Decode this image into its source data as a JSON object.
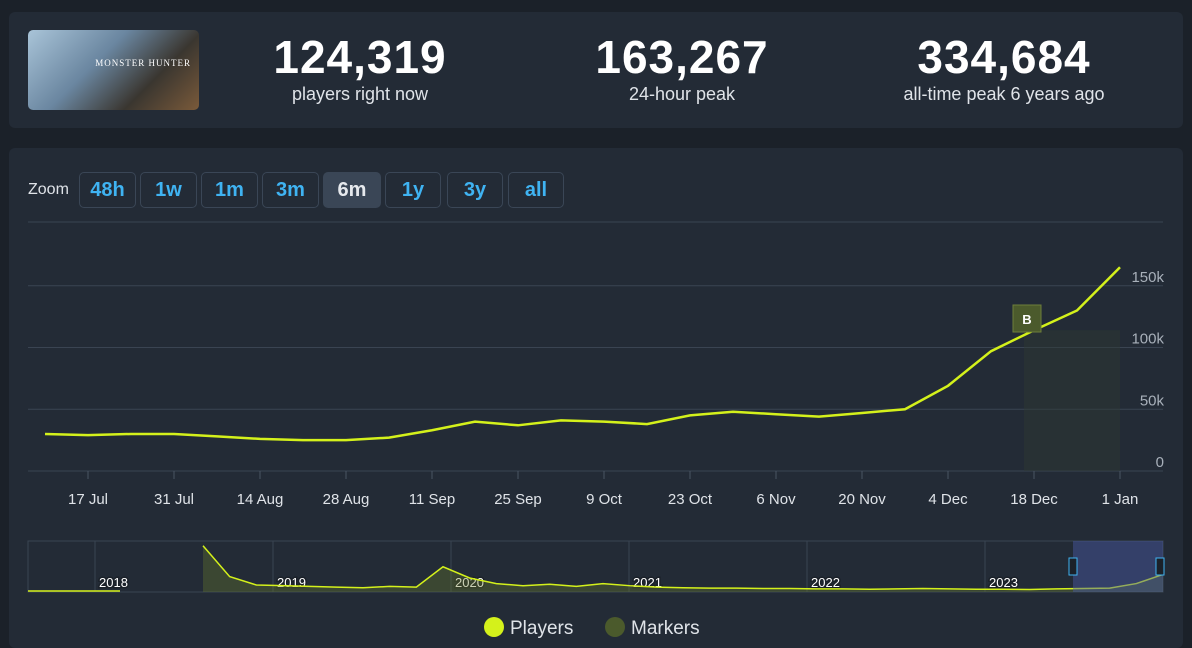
{
  "header": {
    "thumbnail_text": "MONSTER HUNTER",
    "stats": [
      {
        "value": "124,319",
        "label": "players right now"
      },
      {
        "value": "163,267",
        "label": "24-hour peak"
      },
      {
        "value": "334,684",
        "label": "all-time peak 6 years ago"
      }
    ]
  },
  "zoom": {
    "label": "Zoom",
    "buttons": [
      "48h",
      "1w",
      "1m",
      "3m",
      "6m",
      "1y",
      "3y",
      "all"
    ],
    "active": "6m"
  },
  "chart_data": {
    "type": "line",
    "categories": [
      null,
      "17 Jul",
      null,
      "31 Jul",
      null,
      "14 Aug",
      null,
      "28 Aug",
      null,
      "11 Sep",
      null,
      "25 Sep",
      null,
      "9 Oct",
      null,
      "23 Oct",
      null,
      "6 Nov",
      null,
      "20 Nov",
      null,
      "4 Dec",
      null,
      "18 Dec",
      null,
      "1 Jan"
    ],
    "series": [
      {
        "name": "Players",
        "color": "#d4f11b",
        "values": [
          30000,
          29000,
          30000,
          30000,
          28000,
          26000,
          25000,
          25000,
          27000,
          33000,
          40000,
          37000,
          41000,
          40000,
          38000,
          45000,
          48000,
          46000,
          44000,
          47000,
          50000,
          69000,
          97000,
          114000,
          130000,
          165000
        ]
      }
    ],
    "markers": {
      "name": "Markers",
      "color": "#4b5a2c",
      "items": [
        {
          "label": "B",
          "index": 23
        }
      ]
    },
    "ylim": [
      0,
      200000
    ],
    "yticks": [
      0,
      {
        "value": 50000,
        "label": "50k"
      },
      {
        "value": 100000,
        "label": "100k"
      },
      {
        "value": 150000,
        "label": "150k"
      }
    ],
    "grid": true,
    "navigator": {
      "years": [
        "2018",
        "2019",
        "2020",
        "2021",
        "2022",
        "2023"
      ],
      "values": [
        330000,
        110000,
        50000,
        45000,
        40000,
        35000,
        30000,
        40000,
        35000,
        180000,
        100000,
        60000,
        45000,
        55000,
        40000,
        60000,
        45000,
        35000,
        30000,
        28000,
        28000,
        25000,
        25000,
        22000,
        22000,
        20000,
        22000,
        25000,
        22000,
        20000,
        20000,
        18000,
        22000,
        25000,
        28000,
        60000,
        125000
      ],
      "ylim": [
        0,
        335000
      ]
    }
  }
}
